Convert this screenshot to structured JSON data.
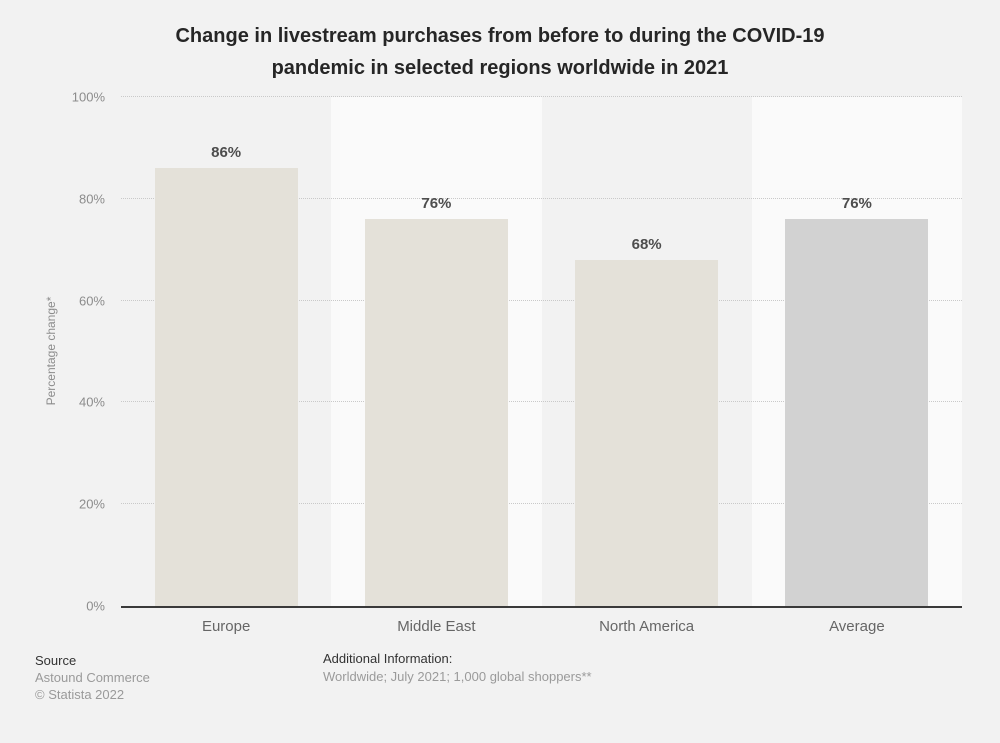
{
  "title_lines": [
    "Change in livestream purchases from before to during the COVID-19",
    "pandemic in selected regions worldwide in 2021"
  ],
  "chart_data": {
    "type": "bar",
    "title": "Change in livestream purchases from before to during the COVID-19 pandemic in selected regions worldwide in 2021",
    "categories": [
      "Europe",
      "Middle East",
      "North America",
      "Average"
    ],
    "values": [
      86,
      76,
      68,
      76
    ],
    "value_labels": [
      "86%",
      "76%",
      "68%",
      "76%"
    ],
    "xlabel": "",
    "ylabel": "Percentage change*",
    "ylim": [
      0,
      100
    ],
    "yticks": [
      0,
      20,
      40,
      60,
      80,
      100
    ],
    "ytick_labels": [
      "0%",
      "20%",
      "40%",
      "60%",
      "80%",
      "100%"
    ],
    "grid": "horizontal-dotted",
    "legend": "none",
    "bar_colors": [
      "#e4e1d9",
      "#e4e1d9",
      "#e4e1d9",
      "#d2d2d2"
    ],
    "band_colors": [
      "#f2f2f2",
      "#fafafa",
      "#f2f2f2",
      "#fafafa"
    ]
  },
  "footer": {
    "source_label": "Source",
    "source_line1": "Astound Commerce",
    "source_line2": "© Statista 2022",
    "additional_label": "Additional Information:",
    "additional_text": "Worldwide; July 2021; 1,000 global shoppers**"
  },
  "colors": {
    "page_background": "#f2f2f2",
    "axis_line": "#3a3a3a",
    "title_text": "#262626",
    "value_label_text": "#4d4d4d",
    "tick_text": "#8c8c8c",
    "category_text": "#666666"
  }
}
